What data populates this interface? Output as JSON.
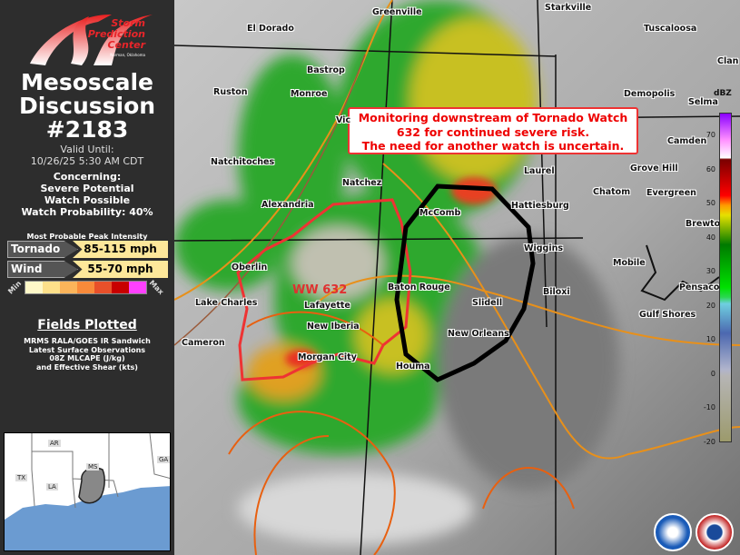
{
  "panel": {
    "logo": {
      "line1": "Storm",
      "line2": "Prediction",
      "line3": "Center",
      "line4": "Norman, Oklahoma"
    },
    "title_line1": "Mesoscale",
    "title_line2": "Discussion",
    "number": "#2183",
    "valid_label": "Valid Until:",
    "valid_time": "10/26/25 5:30 AM CDT",
    "concerning_label": "Concerning:",
    "concerning_line1": "Severe Potential",
    "concerning_line2": "Watch Possible",
    "watch_probability": "Watch Probability: 40%",
    "peak_intensity_label": "Most Probable Peak Intensity",
    "tornado": {
      "label": "Tornado",
      "value": "85-115 mph"
    },
    "wind": {
      "label": "Wind",
      "value": "55-70 mph"
    },
    "scale": {
      "min": "Min",
      "max": "Max",
      "colors": [
        "#fff8c8",
        "#fde08a",
        "#fbb45a",
        "#f88a3a",
        "#e8502a",
        "#c80000",
        "#ff40ff"
      ]
    },
    "fields_title": "Fields Plotted",
    "fields": [
      "MRMS RALA/GOES IR Sandwich",
      "Latest Surface Observations",
      "08Z MLCAPE (J/kg)",
      "and Effective Shear (kts)"
    ],
    "inset_states": [
      "AR",
      "MS",
      "TX",
      "LA",
      "GA"
    ]
  },
  "map": {
    "annotation": [
      "Monitoring downstream of Tornado Watch",
      "632 for continued severe risk.",
      "The need for another watch is uncertain."
    ],
    "watch_label": "WW 632",
    "cities": [
      "Greenville",
      "Starkville",
      "Tuscaloosa",
      "El Dorado",
      "Bastrop",
      "Ruston",
      "Monroe",
      "Vic",
      "Demopolis",
      "Selma",
      "Clan",
      "Camden",
      "Natchitoches",
      "Natchez",
      "Laurel",
      "Grove Hill",
      "Chatom",
      "Evergreen",
      "Alexandria",
      "McComb",
      "Hattiesburg",
      "Brewton",
      "Wiggins",
      "Mobile",
      "Oberlin",
      "Pensacola",
      "Baton Rouge",
      "Slidell",
      "Biloxi",
      "Lake Charles",
      "Lafayette",
      "Gulf Shores",
      "New Iberia",
      "New Orleans",
      "Cameron",
      "Morgan City",
      "Houma"
    ],
    "colorbar": {
      "unit": "dBZ",
      "ticks": [
        "70",
        "60",
        "50",
        "40",
        "30",
        "20",
        "10",
        "0",
        "-10",
        "-20"
      ]
    },
    "colors": {
      "md_outline": "#000000",
      "watch_outline": "#ee3333",
      "cape": "#e8901a",
      "shear": "#9a5a3a"
    }
  }
}
